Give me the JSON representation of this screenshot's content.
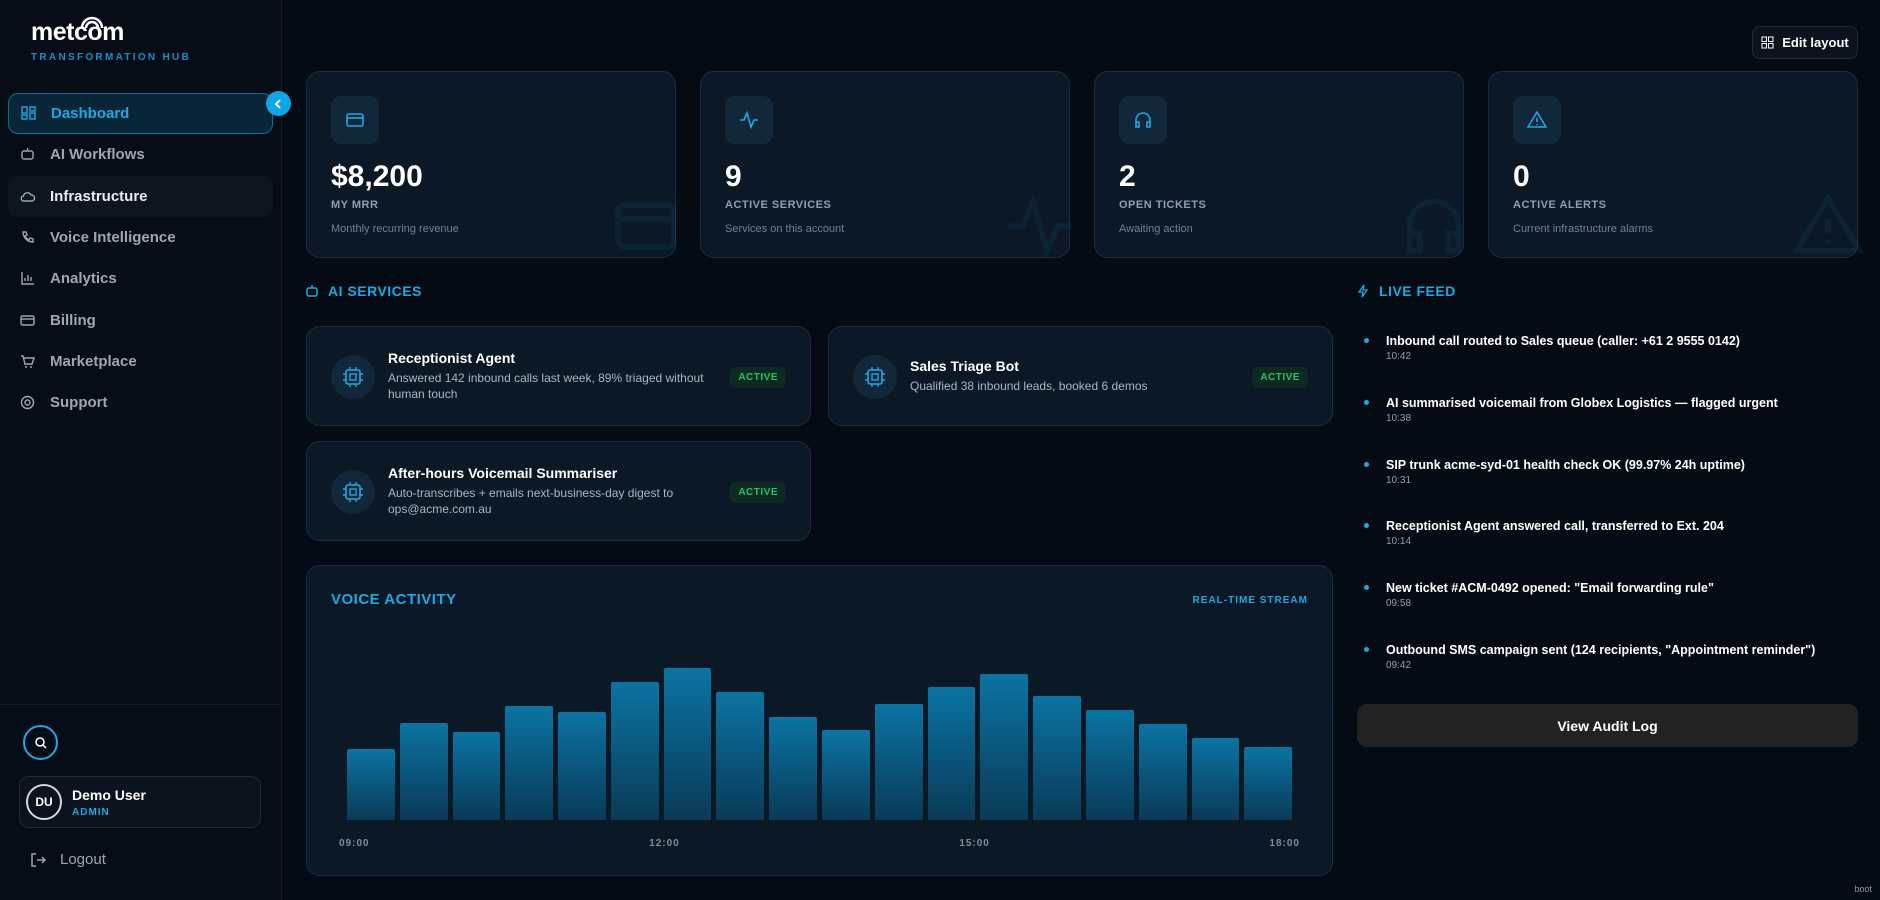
{
  "brand": {
    "name": "metcom",
    "tagline": "TRANSFORMATION HUB"
  },
  "nav": [
    {
      "label": "Dashboard"
    },
    {
      "label": "AI Workflows"
    },
    {
      "label": "Infrastructure"
    },
    {
      "label": "Voice Intelligence"
    },
    {
      "label": "Analytics"
    },
    {
      "label": "Billing"
    },
    {
      "label": "Marketplace"
    },
    {
      "label": "Support"
    }
  ],
  "user": {
    "initials": "DU",
    "name": "Demo User",
    "role": "ADMIN"
  },
  "logout": "Logout",
  "edit_layout": "Edit layout",
  "stats": [
    {
      "value": "$8,200",
      "label": "MY MRR",
      "caption": "Monthly recurring revenue"
    },
    {
      "value": "9",
      "label": "ACTIVE SERVICES",
      "caption": "Services on this account"
    },
    {
      "value": "2",
      "label": "OPEN TICKETS",
      "caption": "Awaiting action"
    },
    {
      "value": "0",
      "label": "ACTIVE ALERTS",
      "caption": "Current infrastructure alarms"
    }
  ],
  "ai_services": {
    "title": "AI SERVICES",
    "items": [
      {
        "name": "Receptionist Agent",
        "description": "Answered 142 inbound calls last week, 89% triaged without human touch",
        "status": "ACTIVE"
      },
      {
        "name": "Sales Triage Bot",
        "description": "Qualified 38 inbound leads, booked 6 demos",
        "status": "ACTIVE"
      },
      {
        "name": "After-hours Voicemail Summariser",
        "description": "Auto-transcribes + emails next-business-day digest to ops@acme.com.au",
        "status": "ACTIVE"
      }
    ]
  },
  "voice_activity": {
    "title": "VOICE ACTIVITY",
    "badge": "REAL-TIME STREAM",
    "chart_data": {
      "type": "bar",
      "values": [
        59,
        81,
        73,
        95,
        90,
        115,
        127,
        107,
        86,
        75,
        97,
        111,
        122,
        103,
        92,
        80,
        68,
        61
      ],
      "x_labels": [
        "09:00",
        "12:00",
        "15:00",
        "18:00"
      ]
    }
  },
  "live_feed": {
    "title": "LIVE FEED",
    "items": [
      {
        "text": "Inbound call routed to Sales queue (caller: +61 2 9555 0142)",
        "time": "10:42"
      },
      {
        "text": "AI summarised voicemail from Globex Logistics — flagged urgent",
        "time": "10:38"
      },
      {
        "text": "SIP trunk acme-syd-01 health check OK (99.97% 24h uptime)",
        "time": "10:31"
      },
      {
        "text": "Receptionist Agent answered call, transferred to Ext. 204",
        "time": "10:14"
      },
      {
        "text": "New ticket #ACM-0492 opened: \"Email forwarding rule\"",
        "time": "09:58"
      },
      {
        "text": "Outbound SMS campaign sent (124 recipients, \"Appointment reminder\")",
        "time": "09:42"
      }
    ],
    "button": "View Audit Log"
  },
  "footer": "boot"
}
